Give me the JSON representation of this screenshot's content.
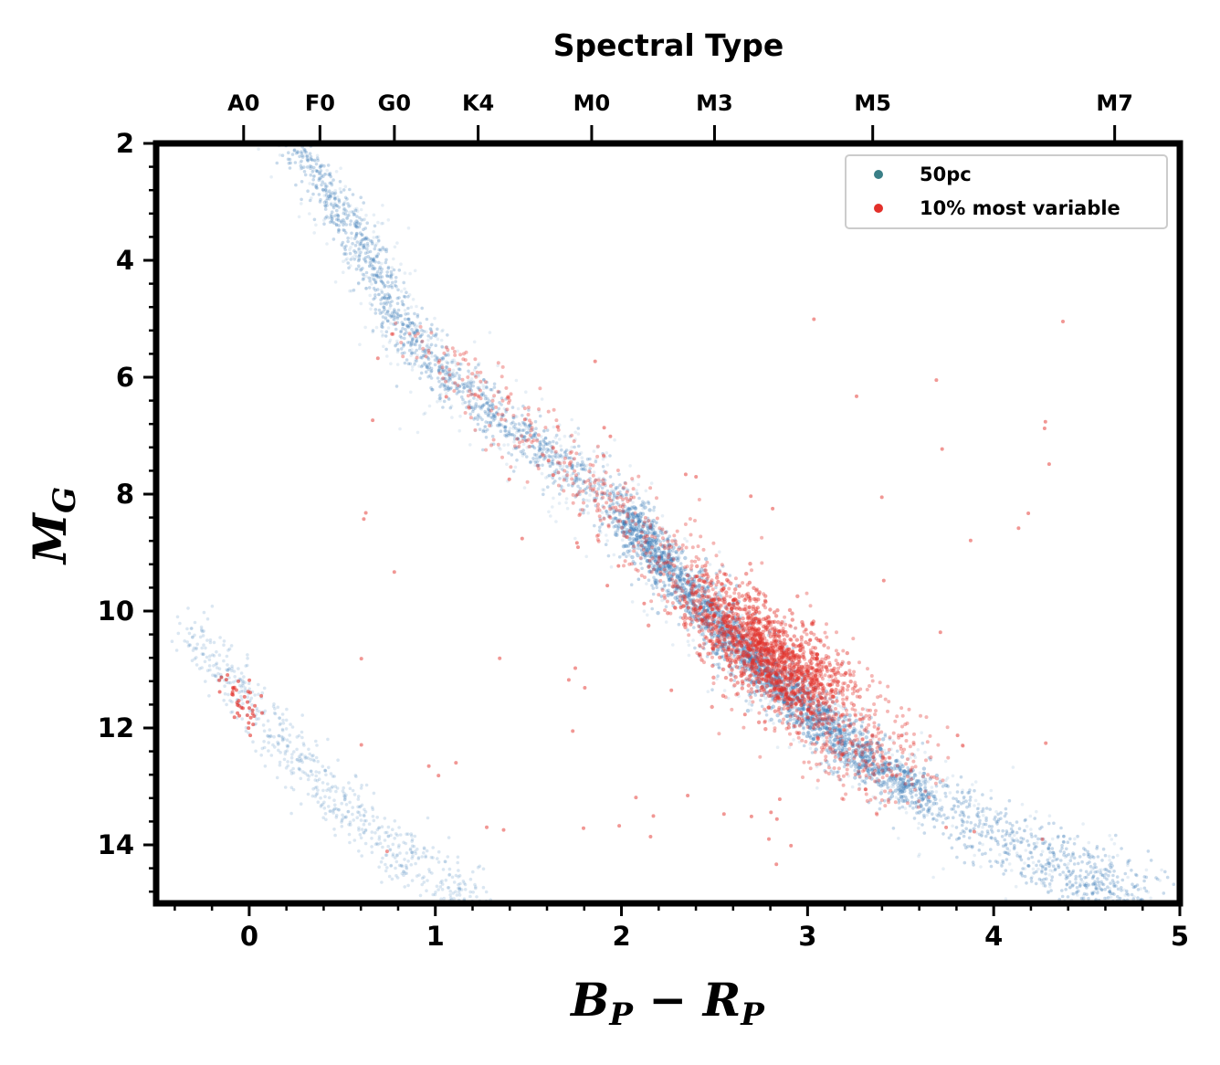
{
  "chart_data": {
    "type": "scatter",
    "title": "Spectral Type",
    "xlabel": "B_P - R_P",
    "ylabel": "M_G",
    "xlim": [
      -0.5,
      5
    ],
    "ylim": [
      15,
      2
    ],
    "y_inverted": true,
    "x_ticks": [
      0,
      1,
      2,
      3,
      4,
      5
    ],
    "x_tick_labels": [
      "0",
      "1",
      "2",
      "3",
      "4",
      "5"
    ],
    "y_ticks": [
      2,
      4,
      6,
      8,
      10,
      12,
      14
    ],
    "y_tick_labels": [
      "2",
      "4",
      "6",
      "8",
      "10",
      "12",
      "14"
    ],
    "top_axis": {
      "label": "Spectral Type",
      "ticks": [
        {
          "label": "A0",
          "x": -0.03
        },
        {
          "label": "F0",
          "x": 0.38
        },
        {
          "label": "G0",
          "x": 0.78
        },
        {
          "label": "K4",
          "x": 1.23
        },
        {
          "label": "M0",
          "x": 1.84
        },
        {
          "label": "M3",
          "x": 2.5
        },
        {
          "label": "M5",
          "x": 3.35
        },
        {
          "label": "M7",
          "x": 4.65
        }
      ]
    },
    "grid": false,
    "legend_position": "top-right",
    "series": [
      {
        "name": "50pc",
        "color": "#3a7ab8",
        "legend_color": "#3a7f87",
        "description_points": {
          "main_sequence": [
            [
              0.25,
              2.0
            ],
            [
              0.5,
              3.2
            ],
            [
              0.65,
              4.0
            ],
            [
              0.8,
              5.0
            ],
            [
              1.0,
              5.8
            ],
            [
              1.3,
              6.6
            ],
            [
              1.6,
              7.3
            ],
            [
              1.9,
              8.0
            ],
            [
              2.1,
              8.7
            ],
            [
              2.35,
              9.6
            ],
            [
              2.6,
              10.5
            ],
            [
              2.85,
              11.3
            ],
            [
              3.1,
              12.0
            ],
            [
              3.4,
              12.7
            ],
            [
              3.8,
              13.5
            ],
            [
              4.2,
              14.1
            ],
            [
              4.5,
              14.6
            ],
            [
              4.8,
              15.0
            ]
          ],
          "white_dwarfs": [
            [
              -0.35,
              10.3
            ],
            [
              -0.1,
              11.1
            ],
            [
              0.1,
              12.0
            ],
            [
              0.3,
              12.7
            ],
            [
              0.5,
              13.3
            ],
            [
              0.7,
              13.9
            ],
            [
              0.9,
              14.3
            ],
            [
              1.1,
              14.8
            ],
            [
              1.2,
              15.0
            ]
          ]
        }
      },
      {
        "name": "10% most variable",
        "color": "#e3302a",
        "legend_color": "#e3302a",
        "description_points": {
          "concentration": [
            [
              0.8,
              5.0
            ],
            [
              1.2,
              6.2
            ],
            [
              1.6,
              7.2
            ],
            [
              2.0,
              8.3
            ],
            [
              2.3,
              9.3
            ],
            [
              2.6,
              10.2
            ],
            [
              2.8,
              10.8
            ],
            [
              3.0,
              11.3
            ],
            [
              3.2,
              12.0
            ],
            [
              3.5,
              12.8
            ]
          ],
          "white_dwarfs": [
            [
              -0.15,
              11.2
            ],
            [
              0.05,
              11.9
            ]
          ]
        }
      }
    ]
  }
}
